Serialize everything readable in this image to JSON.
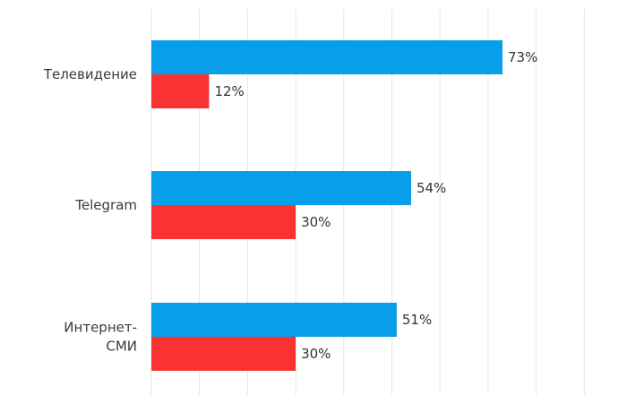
{
  "chart_data": {
    "type": "bar",
    "orientation": "horizontal",
    "categories": [
      "Телевидение",
      "Telegram",
      "Интернет-\nСМИ"
    ],
    "series": [
      {
        "values": [
          73,
          54,
          51
        ],
        "color": "#079FEA"
      },
      {
        "values": [
          12,
          30,
          30
        ],
        "color": "#F93232"
      }
    ],
    "value_suffix": "%",
    "xlim": [
      0,
      100
    ],
    "grid": true,
    "legend": "none"
  }
}
